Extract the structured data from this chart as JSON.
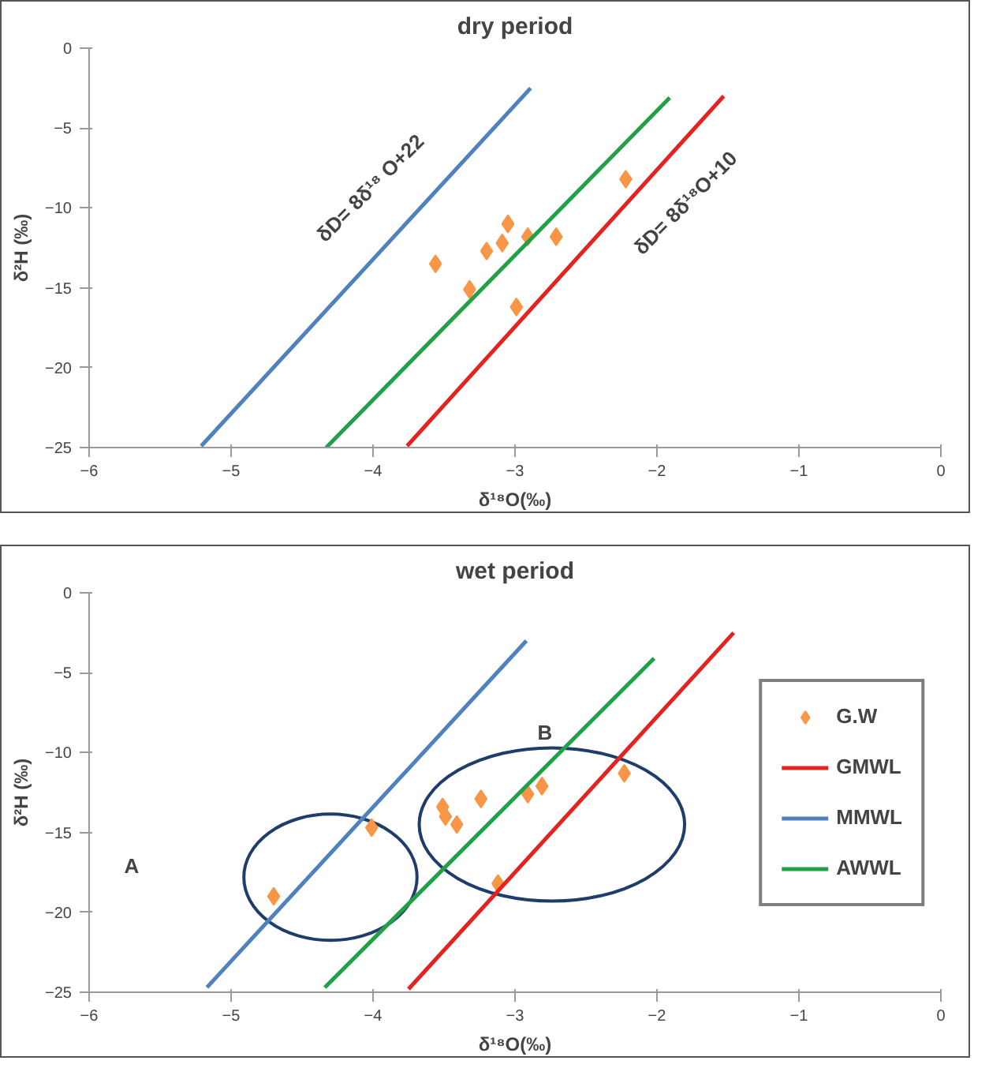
{
  "chart_data": [
    {
      "type": "scatter",
      "title": "dry period",
      "xlabel": "δ¹⁸O(‰)",
      "ylabel": "δ²H (‰)",
      "xlim": [
        -6,
        0
      ],
      "ylim": [
        -25,
        0
      ],
      "xticks": [
        -6,
        -5,
        -4,
        -3,
        -2,
        -1,
        0
      ],
      "yticks": [
        -25,
        -20,
        -15,
        -10,
        -5,
        0
      ],
      "grid": false,
      "legend": false,
      "series": [
        {
          "marker": "diamond",
          "color": "#f79646",
          "x": [
            -3.56,
            -3.32,
            -3.2,
            -3.09,
            -3.05,
            -2.91,
            -2.71,
            -2.99,
            -2.22
          ],
          "values": [
            -13.5,
            -15.1,
            -12.7,
            -12.2,
            -11.0,
            -11.8,
            -11.8,
            -16.2,
            -8.2
          ]
        },
        {
          "type": "line",
          "color": "#e3231f",
          "x": [
            -3.76,
            -1.53
          ],
          "values": [
            -24.9,
            -3.0
          ]
        },
        {
          "type": "line",
          "color": "#4f81bd",
          "x": [
            -5.21,
            -2.89
          ],
          "values": [
            -24.9,
            -2.5
          ]
        },
        {
          "type": "line",
          "color": "#21a047",
          "x": [
            -4.33,
            -1.91
          ],
          "values": [
            -25.0,
            -3.1
          ]
        }
      ],
      "annotations": [
        "δD= 8δ¹⁸ O+22",
        "δD= 8δ¹⁸O+10"
      ]
    },
    {
      "type": "scatter",
      "title": "wet period",
      "xlabel": "δ¹⁸O(‰)",
      "ylabel": "δ²H (‰)",
      "xlim": [
        -6,
        0
      ],
      "ylim": [
        -25,
        0
      ],
      "xticks": [
        -6,
        -5,
        -4,
        -3,
        -2,
        -1,
        0
      ],
      "yticks": [
        -25,
        -20,
        -15,
        -10,
        -5,
        0
      ],
      "grid": false,
      "legend": "right",
      "series": [
        {
          "marker": "diamond",
          "name": "G.W",
          "color": "#f79646",
          "x": [
            -4.7,
            -4.01,
            -3.51,
            -3.49,
            -3.41,
            -3.24,
            -2.91,
            -2.81,
            -3.12,
            -2.23
          ],
          "values": [
            -19.0,
            -14.7,
            -13.4,
            -14.0,
            -14.5,
            -12.9,
            -12.6,
            -12.1,
            -18.2,
            -11.3
          ]
        },
        {
          "type": "line",
          "name": "GMWL",
          "color": "#e3231f",
          "x": [
            -3.75,
            -1.46
          ],
          "values": [
            -24.8,
            -2.5
          ]
        },
        {
          "type": "line",
          "name": "MMWL",
          "color": "#4f81bd",
          "x": [
            -5.17,
            -2.92
          ],
          "values": [
            -24.7,
            -3.0
          ]
        },
        {
          "type": "line",
          "name": "AWWL",
          "color": "#21a047",
          "x": [
            -4.34,
            -2.02
          ],
          "values": [
            -24.7,
            -4.1
          ]
        }
      ],
      "annotations": [
        "A",
        "B"
      ]
    }
  ]
}
